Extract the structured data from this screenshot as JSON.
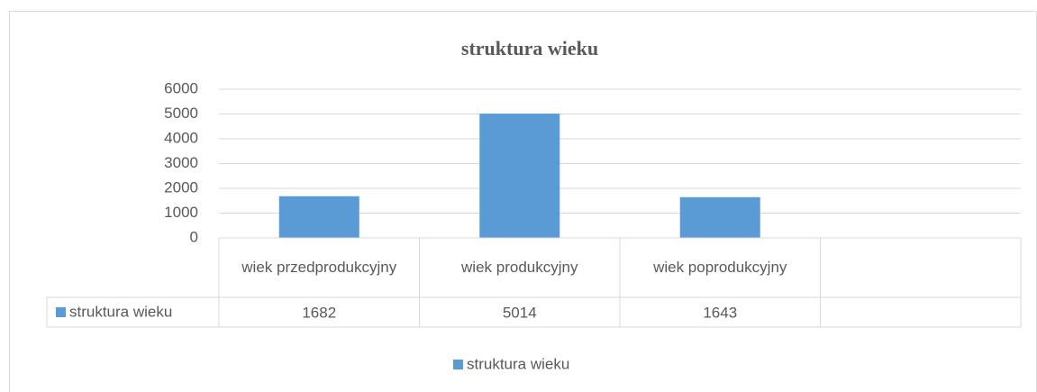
{
  "chart_data": {
    "type": "bar",
    "title": "struktura wieku",
    "categories": [
      "wiek przedprodukcyjny",
      "wiek produkcyjny",
      "wiek poprodukcyjny",
      null
    ],
    "series": [
      {
        "name": "struktura wieku",
        "color": "#5b9bd5",
        "values": [
          1682,
          5014,
          1643,
          null
        ]
      }
    ],
    "ylim": [
      0,
      6000
    ],
    "yticks": [
      0,
      1000,
      2000,
      3000,
      4000,
      5000,
      6000
    ],
    "grid": true,
    "data_table": true,
    "legend": "bottom"
  }
}
